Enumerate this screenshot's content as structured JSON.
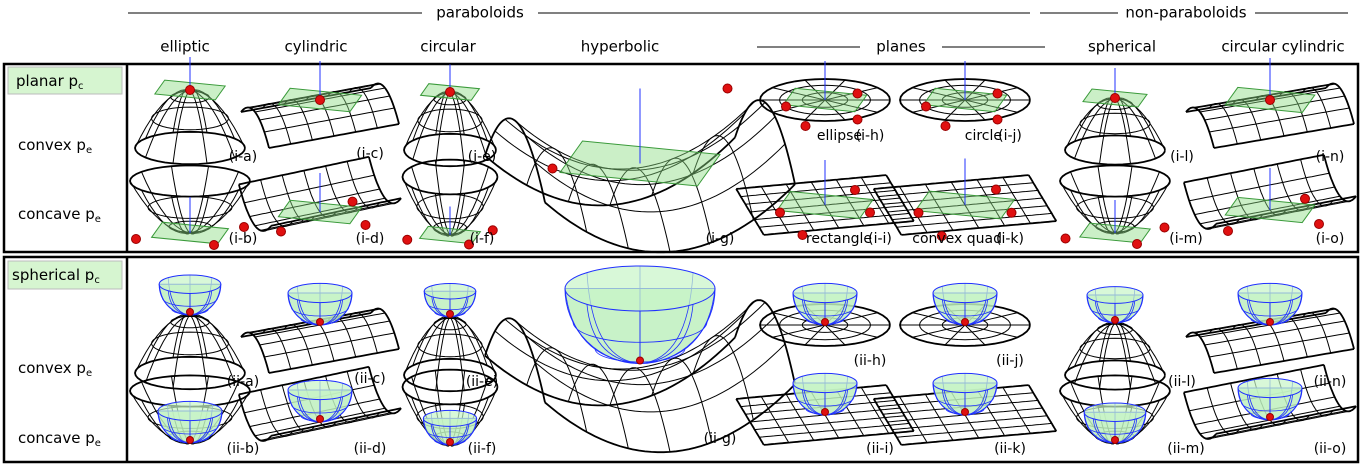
{
  "header": {
    "groups": [
      "paraboloids",
      "planes",
      "non-paraboloids"
    ],
    "columns": [
      "elliptic",
      "cylindric",
      "circular",
      "hyperbolic",
      "spherical",
      "circular cylindric"
    ]
  },
  "sections": [
    {
      "title": {
        "text": "planar p",
        "sub": "c"
      },
      "rows": [
        {
          "text": "convex p",
          "sub": "e"
        },
        {
          "text": "concave p",
          "sub": "e"
        }
      ],
      "panels": [
        {
          "label": "(i-a)"
        },
        {
          "label": "(i-b)"
        },
        {
          "label": "(i-c)"
        },
        {
          "label": "(i-d)"
        },
        {
          "label": "(i-e)"
        },
        {
          "label": "(i-f)"
        },
        {
          "label": "(i-g)"
        },
        {
          "caption": "ellipse",
          "label": "(i-h)"
        },
        {
          "caption": "rectangle",
          "label": "(i-i)"
        },
        {
          "caption": "circle",
          "label": "(i-j)"
        },
        {
          "caption": "convex quad",
          "label": "(i-k)"
        },
        {
          "label": "(i-l)"
        },
        {
          "label": "(i-m)"
        },
        {
          "label": "(i-n)"
        },
        {
          "label": "(i-o)"
        }
      ]
    },
    {
      "title": {
        "text": "spherical p",
        "sub": "c"
      },
      "rows": [
        {
          "text": "convex p",
          "sub": "e"
        },
        {
          "text": "concave p",
          "sub": "e"
        }
      ],
      "panels": [
        {
          "label": "(ii-a)"
        },
        {
          "label": "(ii-b)"
        },
        {
          "label": "(ii-c)"
        },
        {
          "label": "(ii-d)"
        },
        {
          "label": "(ii-e)"
        },
        {
          "label": "(ii-f)"
        },
        {
          "label": "(ii-g)"
        },
        {
          "label": "(ii-h)"
        },
        {
          "label": "(ii-i)"
        },
        {
          "label": "(ii-j)"
        },
        {
          "label": "(ii-k)"
        },
        {
          "label": "(ii-l)"
        },
        {
          "label": "(ii-m)"
        },
        {
          "label": "(ii-n)"
        },
        {
          "label": "(ii-o)"
        }
      ]
    }
  ]
}
